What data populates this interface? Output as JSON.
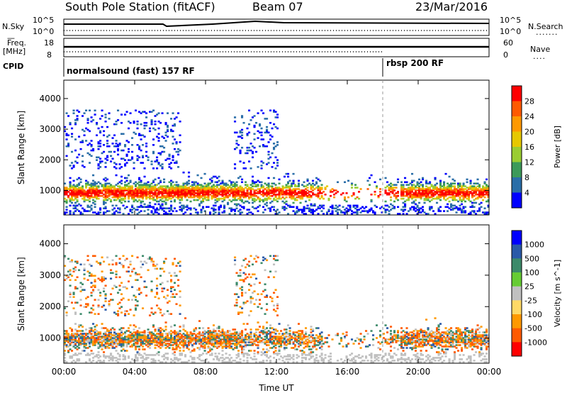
{
  "header": {
    "station": "South Pole Station (fitACF)",
    "beam": "Beam 07",
    "date": "23/Mar/2016"
  },
  "strip": {
    "nsky_label": "N.Sky",
    "nsky_ticks": [
      "10^5",
      "10^0"
    ],
    "nsearch_label": "N.Search",
    "nsearch_ticks": [
      "10^5",
      "10^0"
    ],
    "freq_label": "Freq.",
    "freq_unit": "[MHz]",
    "freq_ticks": [
      "18",
      "8"
    ],
    "nave_label": "Nave",
    "nave_ticks": [
      "60",
      "0"
    ],
    "cpid_label": "CPID",
    "cpid_segments": [
      {
        "text": "normalsound (fast) 157 RF",
        "start_hour": 0
      },
      {
        "text": "rbsp 200 RF",
        "start_hour": 18
      }
    ]
  },
  "chart_data": [
    {
      "type": "heatmap",
      "name": "power",
      "ylabel": "Slant Range [km]",
      "y_ticks": [
        1000,
        2000,
        3000,
        4000
      ],
      "ylim": [
        200,
        4600
      ],
      "x_ticks": [
        "00:00",
        "04:00",
        "08:00",
        "12:00",
        "16:00",
        "20:00",
        "00:00"
      ],
      "xlim_hours": [
        0,
        24
      ],
      "colorbar_label": "Power [dB]",
      "colorbar_ticks": [
        "28",
        "24",
        "20",
        "16",
        "12",
        "8",
        "4"
      ],
      "colorbar_colors": [
        "#ff0000",
        "#ff5a00",
        "#ff9900",
        "#e6c800",
        "#9acd32",
        "#3c9a5a",
        "#2a6ea8",
        "#0000ff"
      ]
    },
    {
      "type": "heatmap",
      "name": "velocity",
      "ylabel": "Slant Range [km]",
      "y_ticks": [
        1000,
        2000,
        3000,
        4000
      ],
      "ylim": [
        200,
        4600
      ],
      "x_ticks": [
        "00:00",
        "04:00",
        "08:00",
        "12:00",
        "16:00",
        "20:00",
        "00:00"
      ],
      "xlim_hours": [
        0,
        24
      ],
      "xlabel": "Time UT",
      "colorbar_label": "Velocity [m s^-1]",
      "colorbar_ticks": [
        "1000",
        "500",
        "100",
        "25",
        "-25",
        "-100",
        "-500",
        "-1000"
      ],
      "colorbar_colors": [
        "#0000ff",
        "#2a5aa8",
        "#3c8a6a",
        "#66cc33",
        "#c0c0c0",
        "#ffd966",
        "#ff9900",
        "#ff5a00",
        "#ff0000"
      ]
    }
  ]
}
